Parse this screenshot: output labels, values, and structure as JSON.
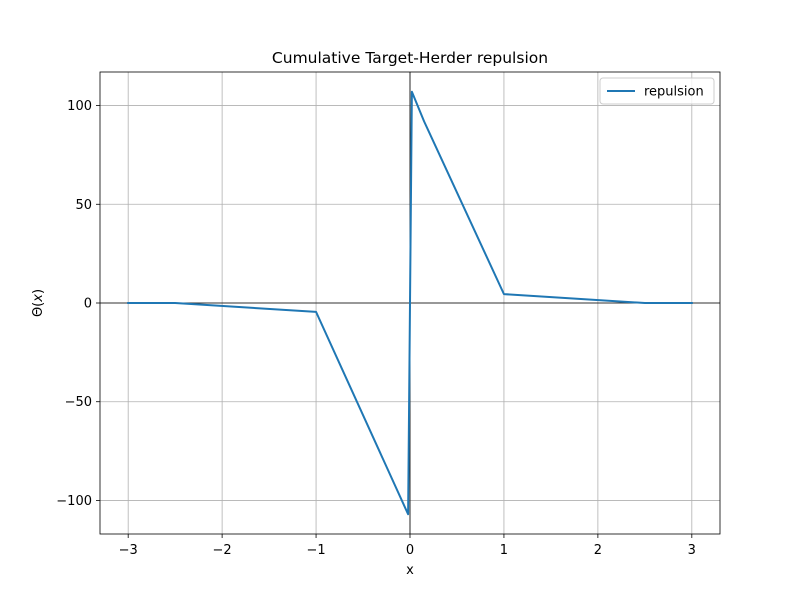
{
  "chart_data": {
    "type": "line",
    "title": "Cumulative Target-Herder repulsion",
    "xlabel": "x",
    "ylabel": "Θ(x)",
    "ylabel_parts": [
      "Θ(",
      "x",
      ")"
    ],
    "xlim": [
      -3.3,
      3.3
    ],
    "ylim": [
      -117,
      117
    ],
    "x_ticks": [
      -3,
      -2,
      -1,
      0,
      1,
      2,
      3
    ],
    "y_ticks": [
      -100,
      -50,
      0,
      50,
      100
    ],
    "x_tick_labels": [
      "−3",
      "−2",
      "−1",
      "0",
      "1",
      "2",
      "3"
    ],
    "y_tick_labels": [
      "−100",
      "−50",
      "0",
      "50",
      "100"
    ],
    "grid": true,
    "zero_lines": true,
    "legend_position": "top-right",
    "series": [
      {
        "name": "repulsion",
        "color": "#1f77b4",
        "x": [
          -3.0,
          -2.5,
          -1.0,
          -0.02,
          0.0,
          0.02,
          0.15,
          1.0,
          2.5,
          3.0
        ],
        "y": [
          0.0,
          0.0,
          -4.5,
          -107.0,
          0.0,
          107.0,
          92.0,
          4.5,
          0.0,
          0.0
        ]
      }
    ]
  }
}
